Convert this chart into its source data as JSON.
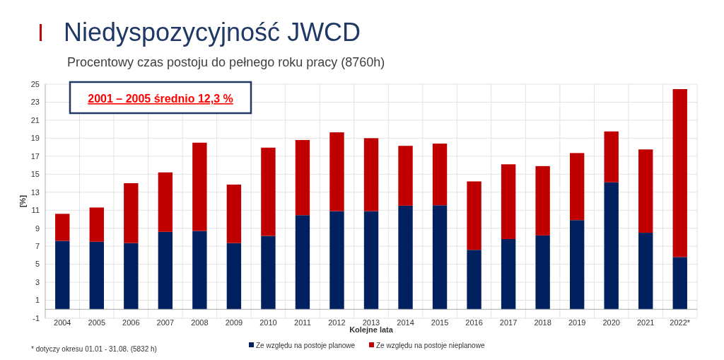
{
  "chart_data": {
    "type": "bar",
    "title": "Niedyspozycyjność JWCD",
    "subtitle": "Procentowy czas postoju do pełnego roku pracy (8760h)",
    "xlabel": "Kolejne lata",
    "ylabel": "[%]",
    "annotations": [
      "2001 – 2005 średnio 12,3 %",
      "* dotyczy okresu 01.01 - 31.08. (5832 h)"
    ],
    "categories": [
      "2004",
      "2005",
      "2006",
      "2007",
      "2008",
      "2009",
      "2010",
      "2011",
      "2012",
      "2013",
      "2014",
      "2015",
      "2016",
      "2017",
      "2018",
      "2019",
      "2020",
      "2021",
      "2022*"
    ],
    "stacked": true,
    "series": [
      {
        "name": "Ze względu na postoje planowe",
        "color": "#002060",
        "values": [
          7.6,
          7.5,
          7.35,
          8.6,
          8.7,
          7.35,
          8.15,
          10.45,
          10.9,
          10.9,
          11.5,
          11.55,
          6.6,
          7.8,
          8.2,
          9.9,
          14.1,
          8.5,
          5.8
        ]
      },
      {
        "name": "Ze względu na postoje nieplanowe",
        "color": "#c00000",
        "values": [
          3.0,
          3.8,
          6.65,
          6.6,
          9.8,
          6.5,
          9.8,
          8.35,
          8.75,
          8.1,
          6.65,
          6.85,
          7.6,
          8.3,
          7.7,
          7.45,
          5.65,
          9.25,
          18.65
        ]
      }
    ],
    "ylim": [
      -1,
      25
    ],
    "yticks": [
      -1,
      1,
      3,
      5,
      7,
      9,
      11,
      13,
      15,
      17,
      19,
      21,
      23,
      25
    ],
    "grid": true,
    "legend": "bottom"
  }
}
